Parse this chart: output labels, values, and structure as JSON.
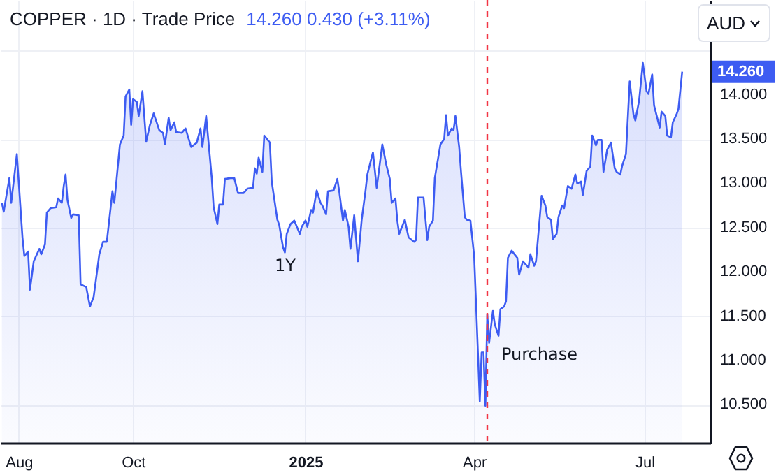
{
  "chart_data": {
    "type": "area",
    "title": "COPPER · 1D · Trade Price",
    "subtitle": "14.260  0.430 (+3.11%)",
    "x": [
      "2024-07-23",
      "2024-07-24",
      "2024-07-27",
      "2024-07-28",
      "2024-07-31",
      "2024-08-03",
      "2024-08-04",
      "2024-08-06",
      "2024-08-07",
      "2024-08-09",
      "2024-08-12",
      "2024-08-13",
      "2024-08-15",
      "2024-08-16",
      "2024-08-18",
      "2024-08-21",
      "2024-08-22",
      "2024-08-24",
      "2024-08-25",
      "2024-08-26",
      "2024-08-27",
      "2024-08-29",
      "2024-08-30",
      "2024-09-02",
      "2024-09-03",
      "2024-09-06",
      "2024-09-08",
      "2024-09-10",
      "2024-09-13",
      "2024-09-15",
      "2024-09-17",
      "2024-09-20",
      "2024-09-21",
      "2024-09-24",
      "2024-09-26",
      "2024-09-27",
      "2024-09-29",
      "2024-09-30",
      "2024-10-01",
      "2024-10-03",
      "2024-10-04",
      "2024-10-06",
      "2024-10-08",
      "2024-10-10",
      "2024-10-12",
      "2024-10-15",
      "2024-10-17",
      "2024-10-18",
      "2024-10-20",
      "2024-10-21",
      "2024-10-23",
      "2024-10-24",
      "2024-10-27",
      "2024-10-29",
      "2024-11-01",
      "2024-11-04",
      "2024-11-06",
      "2024-11-07",
      "2024-11-09",
      "2024-11-12",
      "2024-11-13",
      "2024-11-15",
      "2024-11-16",
      "2024-11-18",
      "2024-11-19",
      "2024-11-22",
      "2024-11-24",
      "2024-11-26",
      "2024-11-29",
      "2024-12-01",
      "2024-12-04",
      "2024-12-05",
      "2024-12-06",
      "2024-12-07",
      "2024-12-09",
      "2024-12-10",
      "2024-12-13",
      "2024-12-14",
      "2024-12-16",
      "2024-12-17",
      "2024-12-18",
      "2024-12-20",
      "2024-12-21",
      "2024-12-22",
      "2024-12-24",
      "2024-12-26",
      "2024-12-29",
      "2024-12-30",
      "2025-01-01",
      "2025-01-02",
      "2025-01-04",
      "2025-01-05",
      "2025-01-07",
      "2025-01-09",
      "2025-01-10",
      "2025-01-12",
      "2025-01-13",
      "2025-01-16",
      "2025-01-18",
      "2025-01-19",
      "2025-01-21",
      "2025-01-22",
      "2025-01-24",
      "2025-01-25",
      "2025-01-27",
      "2025-01-29",
      "2025-01-31",
      "2025-02-02",
      "2025-02-03",
      "2025-02-06",
      "2025-02-08",
      "2025-02-11",
      "2025-02-13",
      "2025-02-15",
      "2025-02-16",
      "2025-02-18",
      "2025-02-19",
      "2025-02-20",
      "2025-02-23",
      "2025-02-25",
      "2025-02-28",
      "2025-03-01",
      "2025-03-02",
      "2025-03-05",
      "2025-03-07",
      "2025-03-08",
      "2025-03-10",
      "2025-03-11",
      "2025-03-14",
      "2025-03-16",
      "2025-03-17",
      "2025-03-18",
      "2025-03-20",
      "2025-03-21",
      "2025-03-22",
      "2025-03-24",
      "2025-03-25",
      "2025-03-27",
      "2025-03-28",
      "2025-03-30",
      "2025-04-01",
      "2025-04-02",
      "2025-04-04",
      "2025-04-05",
      "2025-04-06",
      "2025-04-07",
      "2025-04-08",
      "2025-04-09",
      "2025-04-11",
      "2025-04-12",
      "2025-04-14",
      "2025-04-15",
      "2025-04-17",
      "2025-04-18",
      "2025-04-19",
      "2025-04-21",
      "2025-04-24",
      "2025-04-25",
      "2025-04-27",
      "2025-04-30",
      "2025-05-01",
      "2025-05-03",
      "2025-05-04",
      "2025-05-07",
      "2025-05-09",
      "2025-05-10",
      "2025-05-12",
      "2025-05-13",
      "2025-05-15",
      "2025-05-16",
      "2025-05-18",
      "2025-05-19",
      "2025-05-21",
      "2025-05-23",
      "2025-05-25",
      "2025-05-26",
      "2025-05-28",
      "2025-05-29",
      "2025-05-31",
      "2025-06-02",
      "2025-06-03",
      "2025-06-05",
      "2025-06-06",
      "2025-06-08",
      "2025-06-09",
      "2025-06-11",
      "2025-06-13",
      "2025-06-15",
      "2025-06-16",
      "2025-06-18",
      "2025-06-19",
      "2025-06-21",
      "2025-06-23",
      "2025-06-25",
      "2025-06-26",
      "2025-06-28",
      "2025-06-30",
      "2025-07-02",
      "2025-07-03",
      "2025-07-05",
      "2025-07-06",
      "2025-07-09",
      "2025-07-10",
      "2025-07-12",
      "2025-07-13",
      "2025-07-15",
      "2025-07-16",
      "2025-07-18",
      "2025-07-19",
      "2025-07-21"
    ],
    "series": [
      {
        "color": "#3d5cf2",
        "values": [
          12.78,
          12.68,
          13.06,
          12.78,
          13.33,
          12.39,
          12.18,
          12.23,
          11.8,
          12.12,
          12.26,
          12.2,
          12.31,
          12.67,
          12.72,
          12.73,
          12.83,
          12.78,
          12.97,
          13.1,
          12.81,
          12.61,
          12.65,
          12.64,
          11.86,
          11.83,
          11.61,
          11.72,
          12.2,
          12.34,
          12.34,
          12.91,
          12.78,
          13.44,
          13.54,
          13.98,
          14.06,
          13.66,
          13.95,
          13.92,
          13.76,
          14.04,
          13.47,
          13.66,
          13.79,
          13.6,
          13.57,
          13.44,
          13.74,
          13.6,
          13.69,
          13.58,
          13.57,
          13.62,
          13.41,
          13.46,
          13.62,
          13.41,
          13.76,
          13.06,
          12.73,
          12.54,
          12.76,
          12.76,
          13.05,
          13.06,
          13.06,
          12.89,
          12.89,
          12.94,
          12.95,
          13.17,
          13.11,
          13.29,
          13.13,
          13.54,
          13.46,
          13.02,
          12.73,
          12.59,
          12.53,
          12.28,
          12.22,
          12.43,
          12.54,
          12.58,
          12.43,
          12.51,
          12.58,
          12.51,
          12.7,
          12.67,
          12.92,
          12.78,
          12.75,
          12.65,
          12.91,
          12.92,
          13.05,
          12.91,
          12.58,
          12.7,
          12.51,
          12.26,
          12.64,
          12.12,
          12.59,
          12.91,
          13.1,
          13.35,
          12.95,
          13.44,
          13.22,
          13.05,
          12.78,
          12.83,
          12.58,
          12.43,
          12.59,
          12.39,
          12.34,
          12.36,
          12.84,
          12.84,
          12.36,
          12.51,
          12.58,
          13.06,
          13.44,
          13.5,
          13.77,
          13.54,
          13.62,
          13.6,
          13.76,
          13.41,
          13.13,
          12.62,
          12.59,
          12.58,
          12.18,
          11.65,
          10.54,
          11.09,
          11.09,
          10.49,
          11.52,
          11.2,
          11.56,
          11.41,
          11.28,
          11.58,
          11.61,
          11.67,
          12.16,
          12.24,
          12.16,
          11.97,
          12.12,
          12.05,
          12.2,
          12.07,
          12.12,
          12.86,
          12.75,
          12.62,
          12.59,
          12.37,
          12.43,
          12.62,
          12.75,
          12.72,
          12.97,
          12.94,
          13.1,
          13.0,
          13.02,
          12.87,
          13.14,
          13.19,
          13.54,
          13.43,
          13.49,
          13.49,
          13.13,
          13.38,
          13.46,
          13.17,
          13.13,
          13.1,
          13.2,
          13.33,
          14.15,
          13.78,
          13.71,
          13.93,
          14.36,
          14.04,
          14.01,
          14.23,
          13.88,
          13.63,
          13.81,
          13.76,
          13.54,
          13.52,
          13.69,
          13.78,
          13.84,
          14.26
        ]
      }
    ],
    "xlim": [
      "2024-07-22",
      "2025-08-05"
    ],
    "xticks": [
      {
        "value": "2024-08-01",
        "label": "Aug"
      },
      {
        "value": "2024-10-01",
        "label": "Oct"
      },
      {
        "value": "2025-01-01",
        "label": "2025"
      },
      {
        "value": "2025-04-01",
        "label": "Apr"
      },
      {
        "value": "2025-07-01",
        "label": "Jul"
      }
    ],
    "ylim": [
      10.07,
      15.07
    ],
    "yticks": [
      {
        "value": 10.5,
        "label": "10.500"
      },
      {
        "value": 11,
        "label": "11.000"
      },
      {
        "value": 11.5,
        "label": "11.500"
      },
      {
        "value": 12,
        "label": "12.000"
      },
      {
        "value": 12.5,
        "label": "12.500"
      },
      {
        "value": 13,
        "label": "13.000"
      },
      {
        "value": 13.5,
        "label": "13.500"
      },
      {
        "value": 14,
        "label": "14.000"
      },
      {
        "value": 14.5,
        "label": null
      }
    ],
    "grid": true,
    "ref_lines": [
      {
        "axis": "x",
        "value": "2025-04-08",
        "label": "Purchase",
        "color": "#f23645",
        "line_style": "dashed"
      }
    ],
    "annotations": [
      "1Y",
      "14.260",
      "AUD"
    ]
  }
}
